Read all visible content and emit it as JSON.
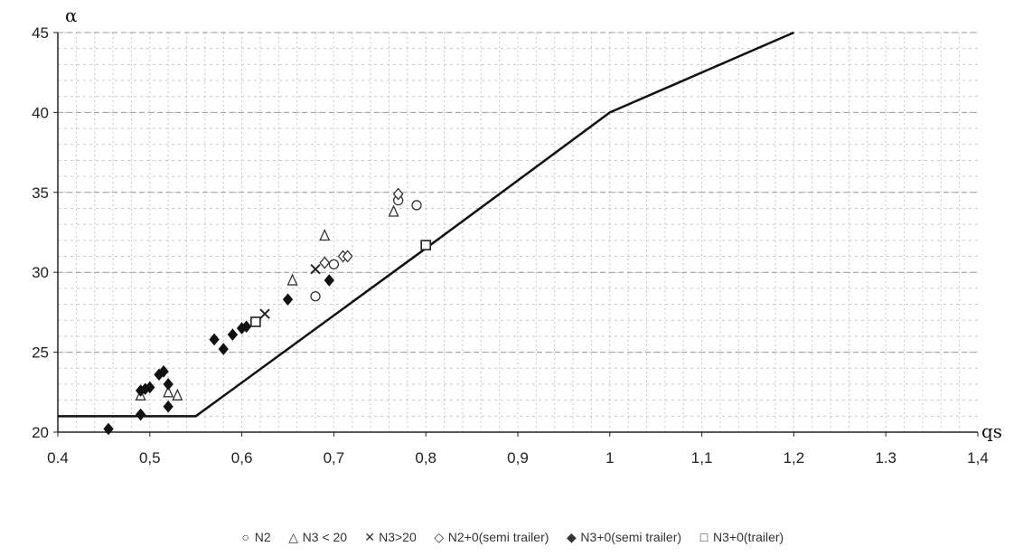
{
  "chart_data": {
    "type": "scatter",
    "ylabel": "α",
    "xlabel": "qs",
    "xlim": [
      0.4,
      1.4
    ],
    "ylim": [
      20,
      45
    ],
    "x_ticks": [
      "0.4",
      "0,5",
      "0,6",
      "0,7",
      "0,8",
      "0,9",
      "1",
      "1,1",
      "1,2",
      "1.3",
      "1,4"
    ],
    "y_ticks": [
      "20",
      "25",
      "30",
      "35",
      "40",
      "45"
    ],
    "grid": true,
    "legend_position": "bottom",
    "boundary_line": {
      "x": [
        0.4,
        0.55,
        0.8,
        1.0,
        1.2
      ],
      "y": [
        21,
        21,
        31.5,
        40,
        45
      ]
    },
    "series": [
      {
        "name": "N2",
        "marker": "circle-open",
        "points": [
          [
            0.68,
            28.5
          ],
          [
            0.77,
            34.5
          ],
          [
            0.79,
            34.2
          ],
          [
            0.7,
            30.5
          ]
        ]
      },
      {
        "name": "N3 < 20",
        "marker": "triangle-open",
        "points": [
          [
            0.69,
            32.3
          ],
          [
            0.765,
            33.8
          ],
          [
            0.655,
            29.5
          ],
          [
            0.52,
            22.5
          ],
          [
            0.53,
            22.3
          ],
          [
            0.49,
            22.3
          ]
        ]
      },
      {
        "name": "N3>20",
        "marker": "x",
        "points": [
          [
            0.625,
            27.4
          ],
          [
            0.68,
            30.2
          ]
        ]
      },
      {
        "name": "N2+0(semi trailer)",
        "marker": "diamond-open",
        "points": [
          [
            0.71,
            31.0
          ],
          [
            0.69,
            30.6
          ],
          [
            0.715,
            31.0
          ],
          [
            0.77,
            34.9
          ]
        ]
      },
      {
        "name": "N3+0(semi trailer)",
        "marker": "diamond-filled",
        "points": [
          [
            0.455,
            20.2
          ],
          [
            0.49,
            22.6
          ],
          [
            0.495,
            22.7
          ],
          [
            0.5,
            22.8
          ],
          [
            0.51,
            23.6
          ],
          [
            0.515,
            23.8
          ],
          [
            0.52,
            23.0
          ],
          [
            0.52,
            21.6
          ],
          [
            0.49,
            21.1
          ],
          [
            0.57,
            25.8
          ],
          [
            0.58,
            25.2
          ],
          [
            0.59,
            26.1
          ],
          [
            0.6,
            26.5
          ],
          [
            0.605,
            26.6
          ],
          [
            0.65,
            28.3
          ],
          [
            0.695,
            29.5
          ]
        ]
      },
      {
        "name": "N3+0(trailer)",
        "marker": "square-open",
        "points": [
          [
            0.8,
            31.7
          ],
          [
            0.615,
            26.9
          ]
        ]
      }
    ]
  },
  "legend": {
    "items": [
      {
        "symbol": "○",
        "label": "N2"
      },
      {
        "symbol": "△",
        "label": "N3 < 20"
      },
      {
        "symbol": "✕",
        "label": "N3>20"
      },
      {
        "symbol": "◇",
        "label": "N2+0(semi trailer)"
      },
      {
        "symbol": "◆",
        "label": "N3+0(semi trailer)"
      },
      {
        "symbol": "□",
        "label": "N3+0(trailer)"
      }
    ]
  }
}
